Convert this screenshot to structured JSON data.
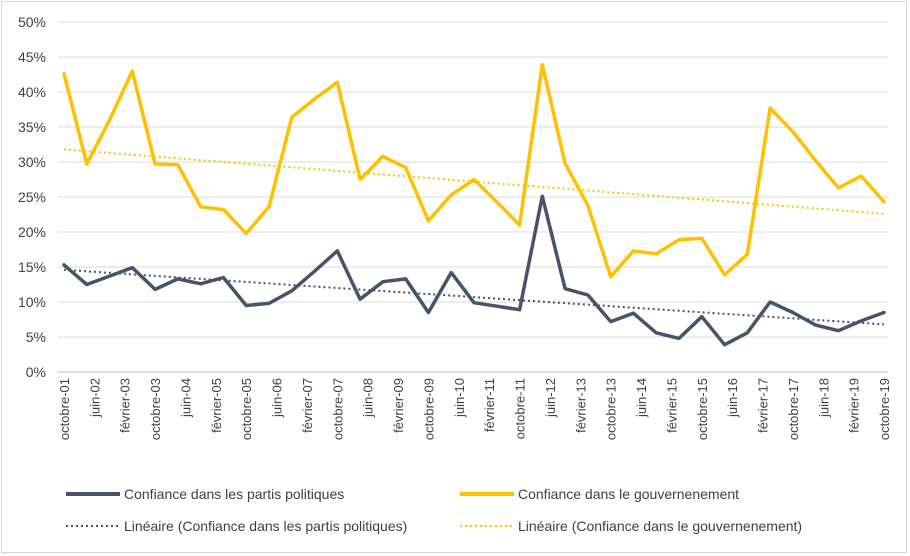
{
  "chart_data": {
    "type": "line",
    "title": "",
    "xlabel": "",
    "ylabel": "",
    "ylim": [
      0,
      50
    ],
    "y_ticks": [
      "0%",
      "5%",
      "10%",
      "15%",
      "20%",
      "25%",
      "30%",
      "35%",
      "40%",
      "45%",
      "50%"
    ],
    "grid": "horizontal",
    "legend_position": "bottom",
    "x_tick_labels": [
      "octobre-01",
      "juin-02",
      "février-03",
      "octobre-03",
      "juin-04",
      "février-05",
      "octobre-05",
      "juin-06",
      "février-07",
      "octobre-07",
      "juin-08",
      "février-09",
      "octobre-09",
      "juin-10",
      "février-11",
      "octobre-11",
      "juin-12",
      "février-13",
      "octobre-13",
      "juin-14",
      "février-15",
      "octobre-15",
      "juin-16",
      "février-17",
      "octobre-17",
      "juin-18",
      "février-19",
      "octobre-19"
    ],
    "series": [
      {
        "name": "Confiance dans les partis politiques",
        "color": "#44546a",
        "style": "solid",
        "values": [
          15.3,
          12.5,
          13.7,
          14.9,
          11.8,
          13.3,
          12.6,
          13.5,
          9.5,
          9.8,
          11.6,
          14.4,
          17.3,
          10.4,
          12.9,
          13.3,
          8.5,
          14.2,
          9.9,
          9.4,
          8.9,
          25.1,
          11.9,
          11.0,
          7.2,
          8.4,
          5.6,
          4.8,
          7.9,
          3.9,
          5.6,
          10.0,
          8.5,
          6.7,
          5.9,
          7.3,
          8.5
        ]
      },
      {
        "name": "Confiance dans le gouvernenement",
        "color": "#ffc000",
        "style": "solid",
        "values": [
          42.6,
          29.7,
          36.0,
          43.0,
          29.7,
          29.6,
          23.6,
          23.2,
          19.8,
          23.6,
          36.4,
          39.0,
          41.4,
          27.5,
          30.8,
          29.2,
          21.6,
          25.3,
          27.5,
          24.3,
          21.0,
          43.9,
          29.8,
          23.8,
          13.6,
          17.3,
          16.9,
          18.9,
          19.1,
          13.9,
          16.8,
          37.7,
          34.3,
          30.2,
          26.3,
          28.0,
          24.3
        ]
      },
      {
        "name": "Linéaire (Confiance dans les partis politiques)",
        "color": "#44546a",
        "style": "dotted",
        "trend": [
          14.6,
          6.8
        ]
      },
      {
        "name": "Linéaire (Confiance dans le gouvernenement)",
        "color": "#ffc000",
        "style": "dotted",
        "trend": [
          31.8,
          22.6
        ]
      }
    ]
  }
}
